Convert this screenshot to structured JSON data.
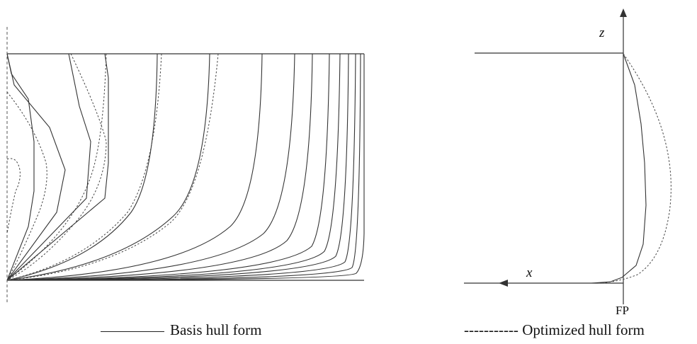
{
  "figure": {
    "left_panel": {
      "line_sets": [
        "basis",
        "optimized"
      ],
      "basis_station_count": 15,
      "optimized_station_count": 6
    },
    "right_panel": {
      "axis_x_label": "x",
      "axis_z_label": "z",
      "fp_label": "FP",
      "line_sets": [
        "basis",
        "optimized"
      ]
    },
    "colors": {
      "line": "#333333",
      "background": "#ffffff"
    }
  },
  "legend": {
    "basis_marker": "————————",
    "basis_label": "Basis hull form",
    "optimized_marker": "-----------",
    "optimized_label": "Optimized hull form"
  }
}
